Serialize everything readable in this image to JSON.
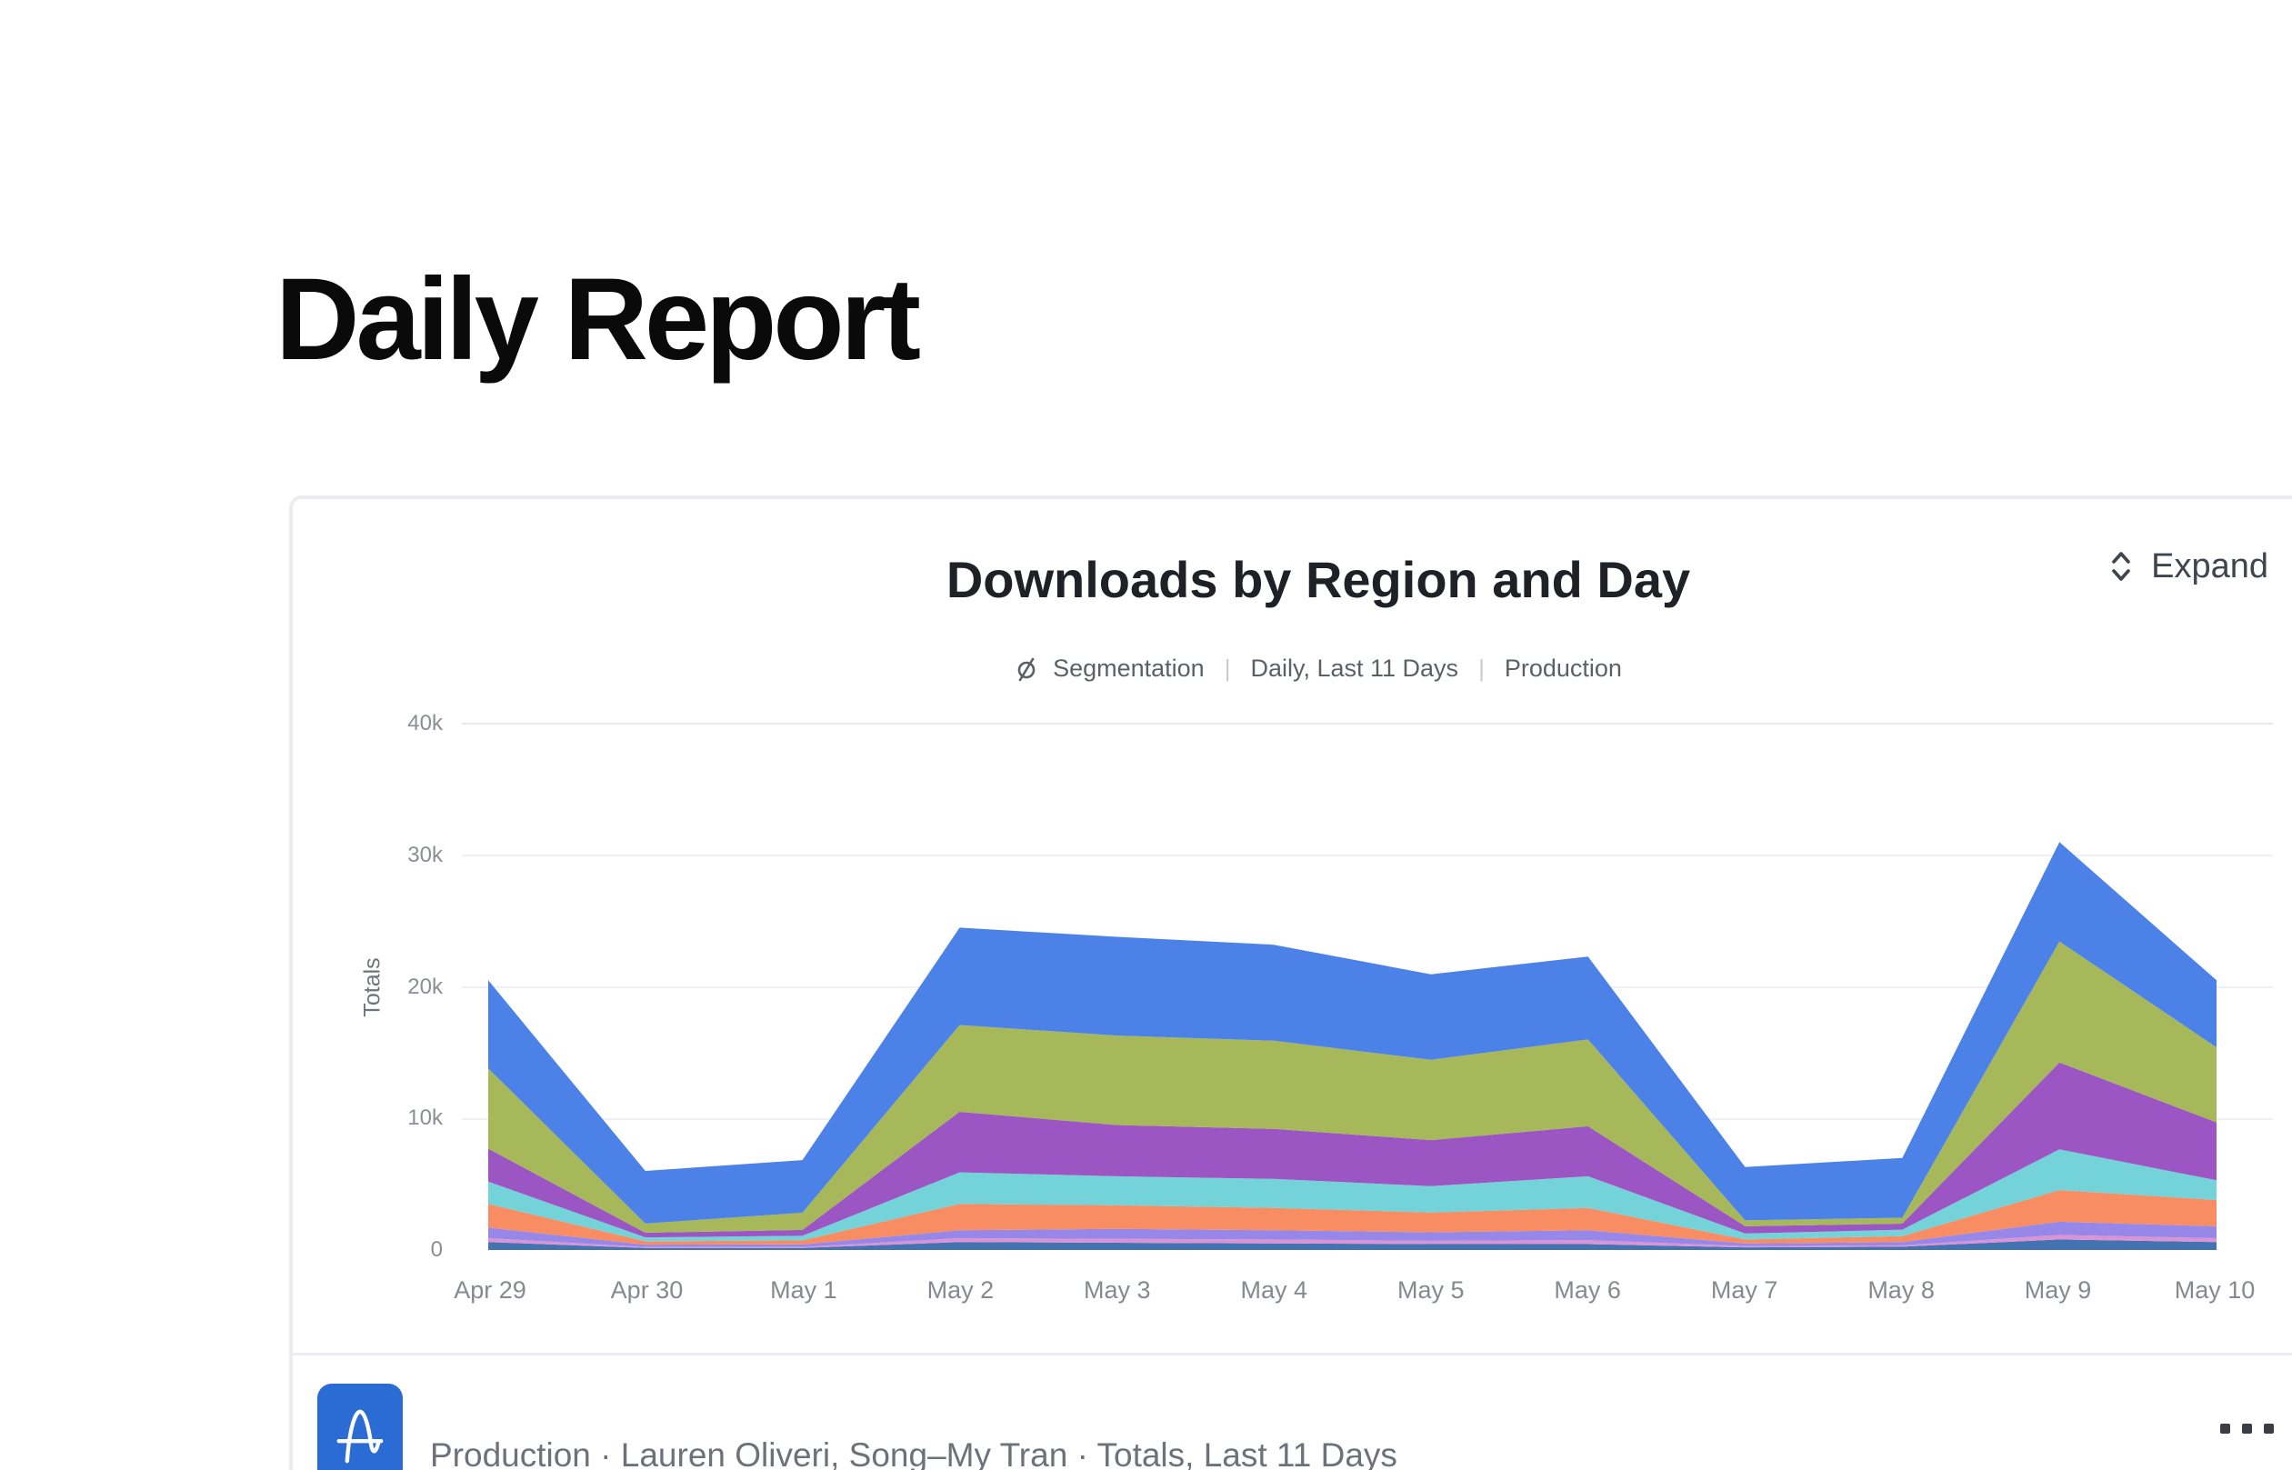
{
  "page": {
    "title": "Daily Report"
  },
  "card": {
    "chart_title": "Downloads by Region and Day",
    "subtitle": {
      "chart_type_icon": "segmentation-icon",
      "chart_type": "Segmentation",
      "separator": "|",
      "interval": "Daily, Last 11 Days",
      "environment": "Production"
    },
    "expand": {
      "icon": "expand-vertical-chevrons-icon",
      "label": "Expand"
    },
    "footer": {
      "source_icon": "amplitude-logo-icon",
      "summary": "Production · Lauren Oliveri, Song–My Tran · Totals, Last 11 Days",
      "more_icon": "horizontal-ellipsis-icon"
    }
  },
  "chart_data": {
    "type": "area",
    "stacked": true,
    "title": "Downloads by Region and Day",
    "xlabel": "",
    "ylabel": "Totals",
    "ylim": [
      0,
      40000
    ],
    "grid": true,
    "legend_position": "none",
    "y_ticks": [
      {
        "value": 0,
        "label": "0"
      },
      {
        "value": 10000,
        "label": "10k"
      },
      {
        "value": 20000,
        "label": "20k"
      },
      {
        "value": 30000,
        "label": "30k"
      },
      {
        "value": 40000,
        "label": "40k"
      }
    ],
    "categories": [
      "Apr 29",
      "Apr 30",
      "May 1",
      "May 2",
      "May 3",
      "May 4",
      "May 5",
      "May 6",
      "May 7",
      "May 8",
      "May 9",
      "May 10"
    ],
    "series_order": "bottom-to-top",
    "series": [
      {
        "name": "steel-blue",
        "color": "#4473B2",
        "values": [
          600,
          150,
          150,
          600,
          550,
          500,
          450,
          450,
          200,
          250,
          800,
          600
        ]
      },
      {
        "name": "pink",
        "color": "#DA93D4",
        "values": [
          300,
          80,
          80,
          300,
          300,
          300,
          250,
          300,
          100,
          100,
          350,
          300
        ]
      },
      {
        "name": "violet",
        "color": "#9787E8",
        "values": [
          800,
          180,
          200,
          600,
          750,
          700,
          650,
          750,
          200,
          250,
          1000,
          900
        ]
      },
      {
        "name": "orange",
        "color": "#F88D64",
        "values": [
          1800,
          250,
          300,
          2000,
          1800,
          1700,
          1500,
          1700,
          300,
          450,
          2400,
          2000
        ]
      },
      {
        "name": "teal",
        "color": "#74D2D9",
        "values": [
          1700,
          300,
          350,
          2400,
          2200,
          2200,
          2000,
          2400,
          450,
          500,
          3100,
          1500
        ]
      },
      {
        "name": "purple",
        "color": "#9C56C4",
        "values": [
          2500,
          350,
          450,
          4600,
          3900,
          3800,
          3500,
          3800,
          550,
          450,
          6600,
          4400
        ]
      },
      {
        "name": "olive",
        "color": "#A6B85A",
        "values": [
          6100,
          700,
          1300,
          6600,
          6800,
          6700,
          6100,
          6600,
          450,
          450,
          9200,
          5700
        ]
      },
      {
        "name": "blue",
        "color": "#4C82E8",
        "values": [
          6700,
          4000,
          4000,
          7400,
          7500,
          7300,
          6500,
          6300,
          4050,
          4550,
          7550,
          5100
        ]
      }
    ],
    "totals": [
      20500,
      6010,
      6830,
      24500,
      23800,
      23200,
      20950,
      22300,
      6300,
      7000,
      31000,
      20500
    ]
  }
}
